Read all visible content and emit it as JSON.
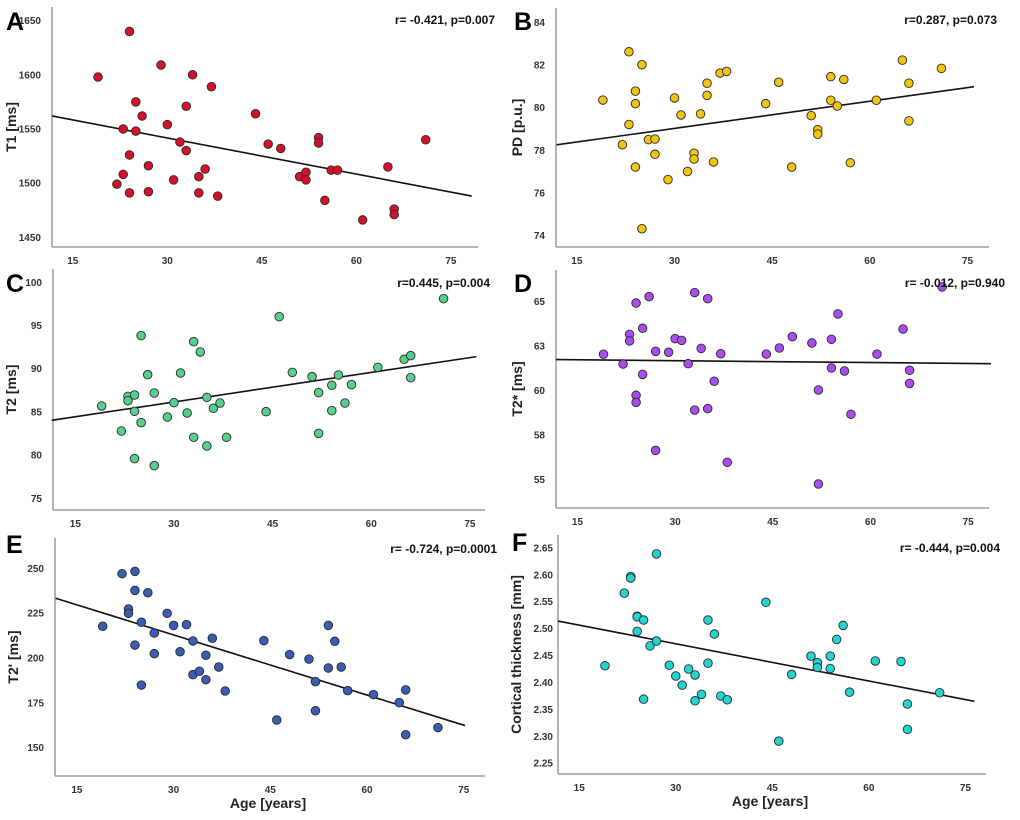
{
  "chart_data": [
    {
      "panel": "A",
      "type": "scatter",
      "ylabel": "T1 [ms]",
      "xlabel": "",
      "stat": "r= -0.421, p=0.007",
      "color": "#d7102a",
      "xlim": [
        11.7,
        79.3
      ],
      "ylim": [
        1441,
        1662.6
      ],
      "xticks": [
        15,
        30,
        45,
        60,
        75
      ],
      "yticks": [
        1450,
        1500,
        1550,
        1600,
        1650
      ],
      "yticklabels": [
        "1450",
        "1500",
        "1550",
        "1600",
        "1650"
      ],
      "x": [
        19,
        22,
        23,
        23,
        24,
        24,
        24,
        25,
        25,
        26,
        27,
        27,
        29,
        30,
        31,
        32,
        33,
        33,
        34,
        35,
        35,
        36,
        37,
        38,
        44,
        46,
        48,
        51,
        52,
        52,
        54,
        54,
        55,
        56,
        57,
        61,
        65,
        66,
        66,
        71
      ],
      "y": [
        1598,
        1499,
        1550,
        1508,
        1640,
        1526,
        1491,
        1575,
        1548,
        1562,
        1516,
        1492,
        1609,
        1554,
        1503,
        1538,
        1571,
        1530,
        1600,
        1506,
        1491,
        1513,
        1589,
        1488,
        1564,
        1536,
        1532,
        1506,
        1510,
        1503,
        1542,
        1537,
        1484,
        1512,
        1512,
        1466,
        1515,
        1476,
        1471,
        1540
      ],
      "fit": {
        "slope": -1.111,
        "intercept": 1575.0,
        "x_range": [
          11.7,
          78.3
        ]
      }
    },
    {
      "panel": "B",
      "type": "scatter",
      "ylabel": "PD [p.u.]",
      "xlabel": "",
      "stat": "r=0.287, p=0.073",
      "color": "#f2c30f",
      "xlim": [
        11.8,
        78.3
      ],
      "ylim": [
        73.45,
        84.69
      ],
      "xticks": [
        15,
        30,
        45,
        60,
        75
      ],
      "yticks": [
        74,
        76,
        78,
        80,
        82,
        84
      ],
      "yticklabels": [
        "74",
        "76",
        "78",
        "80",
        "82",
        "84"
      ],
      "x": [
        19,
        22,
        23,
        23,
        24,
        24,
        24,
        25,
        25,
        26,
        27,
        27,
        29,
        30,
        31,
        32,
        33,
        33,
        34,
        35,
        35,
        36,
        37,
        38,
        44,
        46,
        48,
        51,
        52,
        52,
        54,
        54,
        55,
        56,
        57,
        61,
        65,
        66,
        66,
        71
      ],
      "y": [
        80.36,
        78.26,
        82.63,
        79.21,
        80.78,
        80.19,
        77.21,
        82.02,
        74.31,
        78.5,
        78.53,
        77.81,
        76.62,
        80.46,
        79.66,
        77.0,
        77.86,
        77.59,
        79.71,
        81.15,
        80.58,
        77.45,
        81.63,
        81.71,
        80.19,
        81.2,
        77.21,
        79.63,
        78.97,
        78.76,
        81.46,
        80.35,
        80.08,
        81.33,
        77.41,
        80.35,
        82.24,
        81.15,
        79.38,
        81.85
      ],
      "fit": {
        "slope": 0.0426,
        "intercept": 77.75,
        "x_range": [
          11.9,
          76.0
        ]
      }
    },
    {
      "panel": "C",
      "type": "scatter",
      "ylabel": "T2 [ms]",
      "xlabel": "",
      "stat": "r=0.445, p=0.004",
      "color": "#55d08d",
      "xlim": [
        11.6,
        77.3
      ],
      "ylim": [
        73.65,
        101.54
      ],
      "xticks": [
        15,
        30,
        45,
        60,
        75
      ],
      "yticks": [
        75,
        80,
        85,
        90,
        95,
        100
      ],
      "yticklabels": [
        "75",
        "80",
        "85",
        "90",
        "95",
        "100"
      ],
      "x": [
        19,
        22,
        23,
        23,
        24,
        24,
        24,
        25,
        25,
        26,
        27,
        27,
        29,
        30,
        31,
        32,
        33,
        33,
        34,
        35,
        35,
        36,
        37,
        38,
        44,
        46,
        48,
        51,
        52,
        52,
        54,
        54,
        55,
        56,
        57,
        61,
        65,
        66,
        66,
        71
      ],
      "y": [
        85.69,
        82.79,
        86.8,
        86.3,
        86.96,
        85.07,
        79.59,
        93.83,
        83.76,
        89.31,
        87.19,
        78.78,
        84.41,
        86.07,
        89.51,
        84.88,
        93.13,
        82.06,
        91.94,
        86.69,
        81.06,
        85.42,
        86.03,
        82.06,
        85.03,
        96.03,
        89.58,
        89.08,
        87.23,
        82.52,
        88.08,
        85.15,
        89.27,
        86.03,
        88.16,
        90.16,
        91.09,
        91.51,
        88.97,
        98.11
      ],
      "fit": {
        "slope": 0.1141,
        "intercept": 82.73,
        "x_range": [
          11.4,
          76.0
        ]
      }
    },
    {
      "panel": "D",
      "type": "scatter",
      "ylabel": "T2* [ms]",
      "xlabel": "",
      "stat": "r= -0.012, p=0.940",
      "color": "#a94cf0",
      "xlim": [
        11.7,
        78.2
      ],
      "ylim": [
        53.39,
        66.78
      ],
      "xticks": [
        15,
        30,
        45,
        60,
        75
      ],
      "yticks": [
        55,
        57.5,
        60,
        62.5,
        65
      ],
      "yticklabels": [
        "55",
        "58",
        "60",
        "63",
        "65"
      ],
      "x": [
        19,
        22,
        23,
        23,
        24,
        24,
        24,
        25,
        25,
        26,
        27,
        27,
        29,
        30,
        31,
        32,
        33,
        33,
        34,
        35,
        35,
        36,
        37,
        38,
        44,
        46,
        48,
        51,
        52,
        52,
        54,
        54,
        55,
        56,
        57,
        61,
        65,
        66,
        66,
        71
      ],
      "y": [
        62.04,
        61.49,
        63.16,
        62.79,
        64.92,
        59.73,
        59.33,
        63.5,
        60.91,
        65.28,
        62.2,
        56.63,
        62.15,
        62.92,
        62.82,
        61.51,
        65.51,
        58.9,
        62.37,
        65.17,
        58.98,
        60.52,
        62.07,
        55.96,
        62.05,
        62.39,
        63.03,
        62.67,
        60.03,
        54.74,
        62.88,
        61.27,
        64.31,
        61.1,
        58.66,
        62.05,
        63.46,
        61.14,
        60.4,
        65.83
      ],
      "fit": {
        "slope": -0.00344,
        "intercept": 61.78,
        "x_range": [
          11.7,
          78.5
        ]
      }
    },
    {
      "panel": "E",
      "type": "scatter",
      "ylabel": "T2' [ms]",
      "xlabel": "Age [years]",
      "stat": "r= -0.724, p=0.0001",
      "color": "#3a5cb4",
      "xlim": [
        11.6,
        78.3
      ],
      "ylim": [
        134.2,
        266.9
      ],
      "xticks": [
        15,
        30,
        45,
        60,
        75
      ],
      "yticks": [
        150,
        175,
        200,
        225,
        250
      ],
      "yticklabels": [
        "150",
        "175",
        "200",
        "225",
        "250"
      ],
      "x": [
        19,
        22,
        23,
        23,
        24,
        24,
        24,
        25,
        25,
        26,
        27,
        27,
        29,
        30,
        31,
        32,
        33,
        33,
        34,
        35,
        35,
        36,
        37,
        38,
        44,
        46,
        48,
        51,
        52,
        52,
        54,
        54,
        55,
        56,
        57,
        61,
        65,
        66,
        66,
        71
      ],
      "y": [
        217.7,
        247.0,
        227.3,
        224.9,
        248.3,
        237.7,
        207.2,
        219.9,
        184.9,
        236.4,
        213.9,
        202.4,
        224.9,
        218.2,
        203.5,
        218.6,
        209.5,
        190.7,
        192.6,
        201.5,
        187.9,
        211.0,
        195.0,
        181.6,
        209.7,
        165.4,
        201.9,
        199.4,
        186.8,
        170.6,
        218.2,
        194.4,
        209.3,
        195.0,
        181.8,
        179.6,
        175.1,
        182.2,
        157.2,
        161.2
      ],
      "fit": {
        "slope": -1.118,
        "intercept": 246.4,
        "x_range": [
          11.7,
          75.2
        ]
      }
    },
    {
      "panel": "F",
      "type": "scatter",
      "ylabel": "Cortical thickness [mm]",
      "xlabel": "Age [years]",
      "stat": "r= -0.444, p=0.004",
      "color": "#22d4d2",
      "xlim": [
        11.7,
        78.2
      ],
      "ylim": [
        2.23,
        2.674
      ],
      "xticks": [
        15,
        30,
        45,
        60,
        75
      ],
      "yticks": [
        2.25,
        2.3,
        2.35,
        2.4,
        2.45,
        2.5,
        2.55,
        2.6,
        2.65
      ],
      "yticklabels": [
        "2.25",
        "2.30",
        "2.35",
        "2.40",
        "2.45",
        "2.50",
        "2.55",
        "2.60",
        "2.65"
      ],
      "x": [
        19,
        22,
        23,
        23,
        24,
        24,
        24,
        25,
        25,
        26,
        27,
        27,
        29,
        30,
        31,
        32,
        33,
        33,
        34,
        35,
        35,
        36,
        37,
        38,
        44,
        46,
        48,
        51,
        52,
        52,
        54,
        54,
        55,
        56,
        57,
        61,
        65,
        66,
        66,
        71
      ],
      "y": [
        2.431,
        2.566,
        2.597,
        2.594,
        2.523,
        2.522,
        2.495,
        2.516,
        2.369,
        2.468,
        2.639,
        2.477,
        2.432,
        2.412,
        2.395,
        2.425,
        2.414,
        2.366,
        2.378,
        2.516,
        2.436,
        2.49,
        2.375,
        2.368,
        2.549,
        2.291,
        2.415,
        2.449,
        2.437,
        2.428,
        2.449,
        2.426,
        2.48,
        2.506,
        2.382,
        2.44,
        2.439,
        2.36,
        2.313,
        2.381
      ],
      "fit": {
        "slope": -0.002303,
        "intercept": 2.541,
        "x_range": [
          11.7,
          76.4
        ]
      }
    }
  ]
}
